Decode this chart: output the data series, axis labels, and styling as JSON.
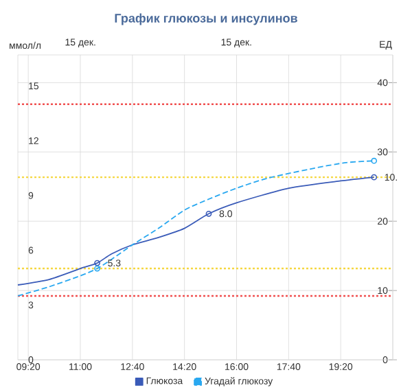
{
  "chart_data": {
    "type": "line",
    "title": "График глюкозы и инсулинов",
    "ylabel": "ммол/л",
    "y2label": "ЕД",
    "xlim": [
      9.0,
      21.0
    ],
    "ylim": [
      0,
      16.7
    ],
    "y2lim": [
      0,
      44
    ],
    "xticks": [
      {
        "value": 9.3333,
        "label": "09:20"
      },
      {
        "value": 11.0,
        "label": "11:00"
      },
      {
        "value": 12.6667,
        "label": "12:40"
      },
      {
        "value": 14.3333,
        "label": "14:20"
      },
      {
        "value": 16.0,
        "label": "16:00"
      },
      {
        "value": 17.6667,
        "label": "17:40"
      },
      {
        "value": 19.3333,
        "label": "19:20"
      }
    ],
    "annotations": [
      "15 дек.",
      "15 дек."
    ],
    "yticks": [
      0,
      3,
      6,
      9,
      12,
      15
    ],
    "y2ticks": [
      0,
      10,
      20,
      30,
      40
    ],
    "grid": true,
    "legend": "bottom",
    "series": [
      {
        "name": "Глюкоза",
        "line_style": "solid",
        "color": "#3a5bb8",
        "x": [
          9.0,
          10.0,
          11.0,
          11.54,
          12.0,
          12.67,
          13.5,
          14.33,
          15.11,
          16.0,
          17.67,
          19.33,
          20.4
        ],
        "values": [
          4.1,
          4.4,
          5.0,
          5.3,
          5.8,
          6.3,
          6.7,
          7.2,
          8.0,
          8.6,
          9.4,
          9.8,
          10
        ]
      },
      {
        "name": "Угадай глюкозу",
        "line_style": "dashed",
        "color": "#29a8f0",
        "x": [
          9.0,
          10.0,
          11.0,
          11.54,
          12.0,
          12.67,
          13.5,
          14.33,
          15.11,
          16.0,
          17.0,
          18.5,
          19.5,
          20.4
        ],
        "values": [
          3.5,
          4.0,
          4.6,
          5.0,
          5.5,
          6.3,
          7.2,
          8.2,
          8.8,
          9.4,
          9.95,
          10.5,
          10.8,
          10.9
        ]
      },
      {
        "type": "scatter",
        "marker": "circle",
        "color": "#3a5bb8",
        "x": [
          11.54,
          15.11,
          20.4
        ],
        "values": [
          5.3,
          8.0,
          10
        ],
        "value_labels": [
          "5.3",
          "8.0",
          "10."
        ]
      },
      {
        "type": "scatter",
        "marker": "circle",
        "color": "#29a8f0",
        "x": [
          11.54,
          20.4
        ],
        "values": [
          5.0,
          10.9
        ]
      }
    ],
    "ref_lines": [
      {
        "axis": "y",
        "value": 14,
        "color": "#f05050",
        "line_style": "dotted"
      },
      {
        "axis": "y",
        "value": 3.5,
        "color": "#f05050",
        "line_style": "dotted"
      },
      {
        "axis": "y",
        "value": 10,
        "color": "#f5d742",
        "line_style": "dotted"
      },
      {
        "axis": "y",
        "value": 5,
        "color": "#f5d742",
        "line_style": "dotted"
      }
    ]
  }
}
